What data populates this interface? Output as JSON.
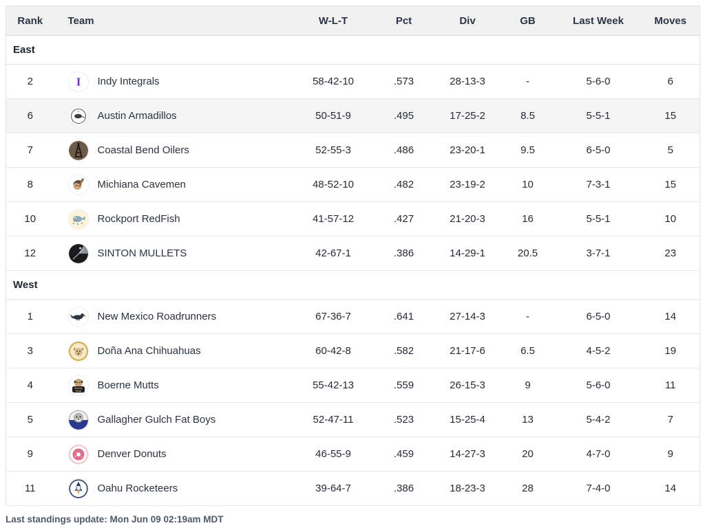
{
  "table": {
    "columns": [
      {
        "key": "rank",
        "label": "Rank"
      },
      {
        "key": "team",
        "label": "Team"
      },
      {
        "key": "wlt",
        "label": "W-L-T"
      },
      {
        "key": "pct",
        "label": "Pct"
      },
      {
        "key": "div",
        "label": "Div"
      },
      {
        "key": "gb",
        "label": "GB"
      },
      {
        "key": "last_week",
        "label": "Last Week"
      },
      {
        "key": "moves",
        "label": "Moves"
      }
    ],
    "sections": [
      {
        "label": "East",
        "teams": [
          {
            "rank": "2",
            "name": "Indy Integrals",
            "icon": "integral-icon",
            "wlt": "58-42-10",
            "pct": ".573",
            "div": "28-13-3",
            "gb": "-",
            "last_week": "5-6-0",
            "moves": "6",
            "highlighted": false
          },
          {
            "rank": "6",
            "name": "Austin Armadillos",
            "icon": "armadillo-icon",
            "wlt": "50-51-9",
            "pct": ".495",
            "div": "17-25-2",
            "gb": "8.5",
            "last_week": "5-5-1",
            "moves": "15",
            "highlighted": true
          },
          {
            "rank": "7",
            "name": "Coastal Bend Oilers",
            "icon": "oil-derrick-icon",
            "wlt": "52-55-3",
            "pct": ".486",
            "div": "23-20-1",
            "gb": "9.5",
            "last_week": "6-5-0",
            "moves": "5",
            "highlighted": false
          },
          {
            "rank": "8",
            "name": "Michiana Cavemen",
            "icon": "caveman-icon",
            "wlt": "48-52-10",
            "pct": ".482",
            "div": "23-19-2",
            "gb": "10",
            "last_week": "7-3-1",
            "moves": "15",
            "highlighted": false
          },
          {
            "rank": "10",
            "name": "Rockport RedFish",
            "icon": "redfish-icon",
            "wlt": "41-57-12",
            "pct": ".427",
            "div": "21-20-3",
            "gb": "16",
            "last_week": "5-5-1",
            "moves": "10",
            "highlighted": false
          },
          {
            "rank": "12",
            "name": "SINTON MULLETS",
            "icon": "mullet-icon",
            "wlt": "42-67-1",
            "pct": ".386",
            "div": "14-29-1",
            "gb": "20.5",
            "last_week": "3-7-1",
            "moves": "23",
            "highlighted": false
          }
        ]
      },
      {
        "label": "West",
        "teams": [
          {
            "rank": "1",
            "name": "New Mexico Roadrunners",
            "icon": "roadrunner-icon",
            "wlt": "67-36-7",
            "pct": ".641",
            "div": "27-14-3",
            "gb": "-",
            "last_week": "6-5-0",
            "moves": "14",
            "highlighted": false
          },
          {
            "rank": "3",
            "name": "Doña Ana Chihuahuas",
            "icon": "chihuahua-icon",
            "wlt": "60-42-8",
            "pct": ".582",
            "div": "21-17-6",
            "gb": "6.5",
            "last_week": "4-5-2",
            "moves": "19",
            "highlighted": false
          },
          {
            "rank": "4",
            "name": "Boerne Mutts",
            "icon": "boerne-mutt-icon",
            "wlt": "55-42-13",
            "pct": ".559",
            "div": "26-15-3",
            "gb": "9",
            "last_week": "5-6-0",
            "moves": "11",
            "highlighted": false
          },
          {
            "rank": "5",
            "name": "Gallagher Gulch Fat Boys",
            "icon": "fat-boys-bulldog-icon",
            "wlt": "52-47-11",
            "pct": ".523",
            "div": "15-25-4",
            "gb": "13",
            "last_week": "5-4-2",
            "moves": "7",
            "highlighted": false
          },
          {
            "rank": "9",
            "name": "Denver Donuts",
            "icon": "donut-icon",
            "wlt": "46-55-9",
            "pct": ".459",
            "div": "14-27-3",
            "gb": "20",
            "last_week": "4-7-0",
            "moves": "9",
            "highlighted": false
          },
          {
            "rank": "11",
            "name": "Oahu Rocketeers",
            "icon": "rocket-icon",
            "wlt": "39-64-7",
            "pct": ".386",
            "div": "18-23-3",
            "gb": "28",
            "last_week": "7-4-0",
            "moves": "14",
            "highlighted": false
          }
        ]
      }
    ]
  },
  "footer": {
    "last_update": "Last standings update: Mon Jun 09 02:19am MDT"
  },
  "colors": {
    "header_bg": "#f1f1f2",
    "border": "#e1e2e4",
    "highlight_row_bg": "#f5f5f6",
    "header_text": "#2b3545",
    "row_text": "#242b34",
    "footer_text": "#4e5a68",
    "indy_purple": "#7b2bd8"
  }
}
